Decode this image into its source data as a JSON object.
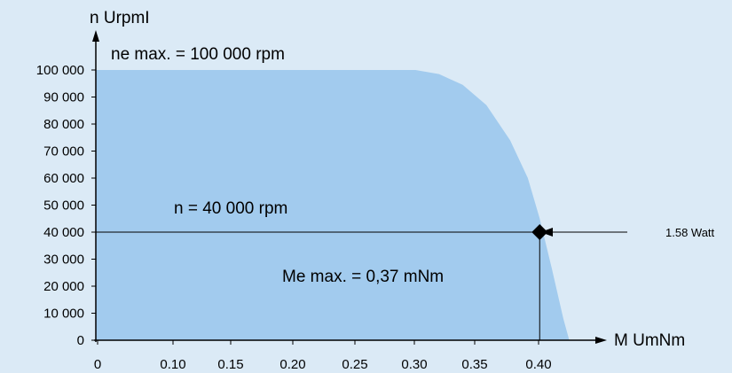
{
  "chart_data": {
    "type": "area",
    "title": "",
    "ylabel": "n UrpmI",
    "xlabel": "M UmNm",
    "xlim": [
      0,
      0.4
    ],
    "ylim": [
      0,
      100000
    ],
    "grid": false,
    "x_tick_labels": [
      "0",
      "0.10",
      "0.15",
      "0.20",
      "0.25",
      "0.30",
      "0.35",
      "0.40"
    ],
    "y_tick_labels": [
      "0",
      "10 000",
      "20 000",
      "30 000",
      "40 000",
      "50 000",
      "60 000",
      "70 000",
      "80 000",
      "90 000",
      "100 000"
    ],
    "series": [
      {
        "x": [
          0,
          0.27,
          0.29,
          0.31,
          0.33,
          0.35,
          0.365,
          0.375,
          0.385,
          0.395,
          0.4
        ],
        "y": [
          100000,
          100000,
          98500,
          94500,
          87000,
          74000,
          60000,
          45000,
          27000,
          8000,
          0
        ],
        "color": "#a2cbee"
      }
    ],
    "marker": {
      "x": 0.375,
      "y": 40000,
      "shape": "diamond"
    },
    "annotations": {
      "max_speed": "ne max. = 100 000 rpm",
      "speed": "n = 40 000 rpm",
      "max_torque": "Me max. = 0,37 mNm",
      "power": "1.58 Watt"
    }
  }
}
